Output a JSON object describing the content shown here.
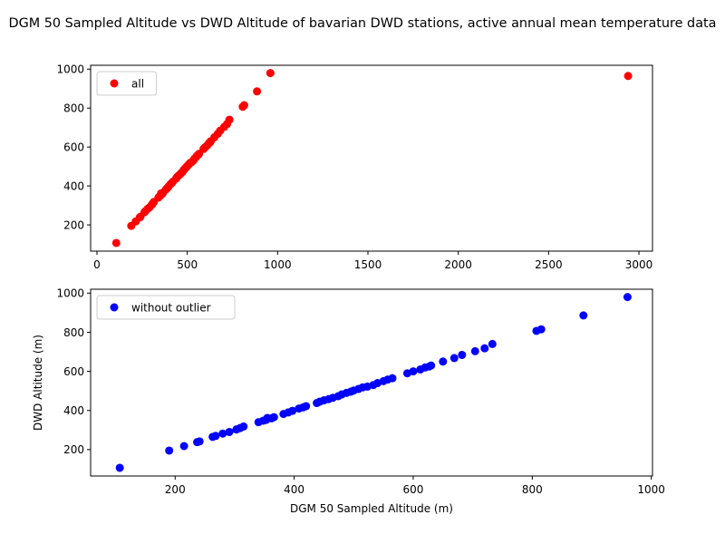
{
  "figure": {
    "title": "DGM 50 Sampled Altitude vs DWD Altitude of bavarian DWD stations, active annual mean temperature data"
  },
  "chart_data": [
    {
      "type": "scatter",
      "title": "",
      "xlabel": "",
      "ylabel": "",
      "xlim": [
        -35,
        3075
      ],
      "ylim": [
        65,
        1020
      ],
      "xticks": [
        0,
        500,
        1000,
        1500,
        2000,
        2500,
        3000
      ],
      "yticks": [
        200,
        400,
        600,
        800,
        1000
      ],
      "legend": "upper-left",
      "grid": false,
      "series": [
        {
          "name": "all",
          "color": "#ff0000",
          "x": [
            107,
            190,
            215,
            237,
            241,
            263,
            268,
            280,
            291,
            303,
            309,
            315,
            340,
            348,
            353,
            355,
            362,
            366,
            382,
            390,
            397,
            408,
            415,
            420,
            438,
            443,
            450,
            458,
            465,
            474,
            480,
            488,
            495,
            500,
            508,
            515,
            523,
            533,
            540,
            550,
            557,
            565,
            590,
            600,
            612,
            620,
            627,
            630,
            650,
            669,
            682,
            704,
            720,
            733,
            807,
            815,
            886,
            960,
            2940
          ],
          "y": [
            107,
            195,
            218,
            238,
            242,
            265,
            270,
            282,
            290,
            303,
            310,
            318,
            340,
            348,
            352,
            362,
            360,
            366,
            382,
            390,
            398,
            410,
            416,
            422,
            438,
            445,
            452,
            458,
            465,
            473,
            482,
            490,
            496,
            502,
            510,
            518,
            522,
            530,
            540,
            550,
            558,
            565,
            590,
            600,
            610,
            620,
            625,
            630,
            650,
            668,
            684,
            703,
            718,
            740,
            807,
            815,
            886,
            980,
            965
          ]
        }
      ]
    },
    {
      "type": "scatter",
      "title": "",
      "xlabel": "DGM 50 Sampled Altitude (m)",
      "ylabel": "DWD Altitude (m)",
      "xlim": [
        58,
        1002
      ],
      "ylim": [
        65,
        1020
      ],
      "xticks": [
        200,
        400,
        600,
        800,
        1000
      ],
      "yticks": [
        200,
        400,
        600,
        800,
        1000
      ],
      "legend": "upper-left",
      "grid": false,
      "series": [
        {
          "name": "without outlier",
          "color": "#0000ff",
          "x": [
            107,
            190,
            215,
            237,
            241,
            263,
            268,
            280,
            291,
            303,
            309,
            315,
            340,
            348,
            353,
            355,
            362,
            366,
            382,
            390,
            397,
            408,
            415,
            420,
            438,
            443,
            450,
            458,
            465,
            474,
            480,
            488,
            495,
            500,
            508,
            515,
            523,
            533,
            540,
            550,
            557,
            565,
            590,
            600,
            612,
            620,
            627,
            630,
            650,
            669,
            682,
            704,
            720,
            733,
            807,
            815,
            886,
            960
          ],
          "y": [
            107,
            195,
            218,
            238,
            242,
            265,
            270,
            282,
            290,
            303,
            310,
            318,
            340,
            348,
            352,
            362,
            360,
            366,
            382,
            390,
            398,
            410,
            416,
            422,
            438,
            445,
            452,
            458,
            465,
            473,
            482,
            490,
            496,
            502,
            510,
            518,
            522,
            530,
            540,
            550,
            558,
            565,
            590,
            600,
            610,
            620,
            625,
            630,
            650,
            668,
            684,
            703,
            718,
            740,
            807,
            815,
            886,
            980
          ]
        }
      ]
    }
  ]
}
